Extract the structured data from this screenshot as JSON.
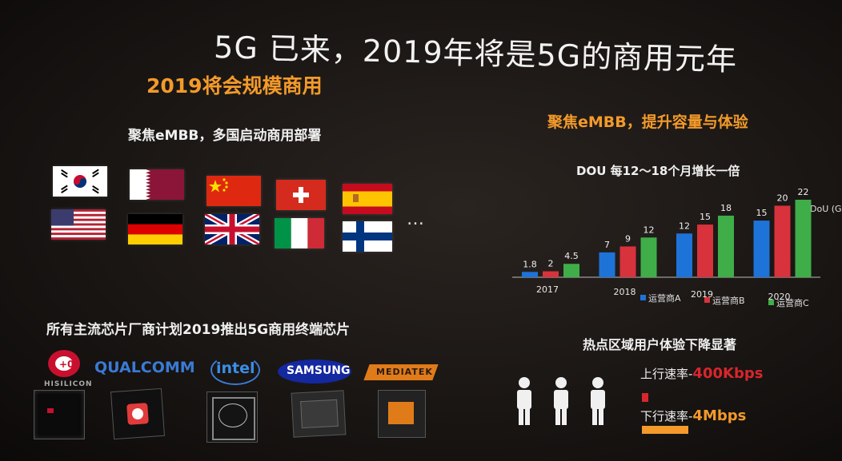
{
  "slide": {
    "title": "5G 已来，2019年将是5G的商用元年",
    "left_heading": "2019将会规模商用",
    "left_subheading": "聚焦eMBB，多国启动商用部署",
    "right_heading": "聚焦eMBB，提升容量与体验",
    "ellipsis": "…",
    "chips_heading": "所有主流芯片厂商计划2019推出5G商用终端芯片",
    "hotspot_heading": "热点区域用户体验下降显著",
    "uplink_label": "上行速率-",
    "uplink_value": "400Kbps",
    "downlink_label": "下行速率-",
    "downlink_value": "4Mbps"
  },
  "flags": [
    "korea-flag",
    "qatar-flag",
    "china-flag",
    "switzerland-flag",
    "spain-flag",
    "usa-flag",
    "germany-flag",
    "uk-flag",
    "italy-flag",
    "finland-flag"
  ],
  "logos": {
    "hisilicon": "HISILICON",
    "qualcomm": "QUALCOMM",
    "intel": "intel",
    "samsung": "SAMSUNG",
    "mediatek": "MEDIATEK"
  },
  "colors": {
    "accent_orange": "#f39a2a",
    "operator_a": "#1e73d8",
    "operator_b": "#d8323c",
    "operator_c": "#3fae49"
  },
  "chart_data": {
    "type": "bar",
    "title": "DOU 每12～18个月增长一倍",
    "ylabel": "DoU (GB)",
    "categories": [
      "2017",
      "2018",
      "2019",
      "2020"
    ],
    "series": [
      {
        "name": "运营商A",
        "values": [
          1.8,
          7,
          12,
          15
        ]
      },
      {
        "name": "运营商B",
        "values": [
          2.0,
          9,
          15,
          20
        ]
      },
      {
        "name": "运营商C",
        "values": [
          4.5,
          12,
          18,
          22
        ]
      }
    ],
    "ylim": [
      0,
      22
    ],
    "legend_position": "bottom"
  }
}
